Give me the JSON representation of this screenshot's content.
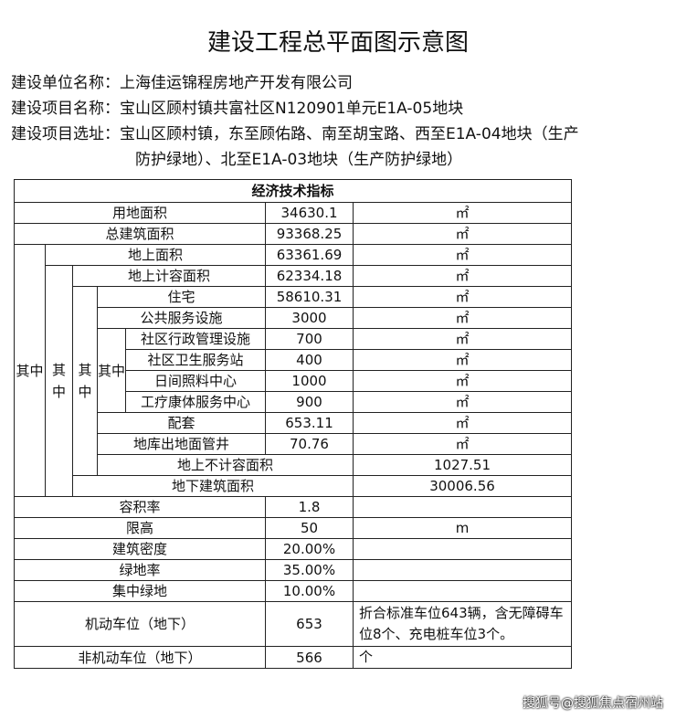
{
  "title": "建设工程总平面图示意图",
  "info": {
    "unit": "建设单位名称：上海佳运锦程房地产开发有限公司",
    "project": "建设项目名称：宝山区顾村镇共富社区N120901单元E1A-05地块",
    "site_line1": "建设项目选址：宝山区顾村镇，东至顾佑路、南至胡宝路、西至E1A-04地块（生产",
    "site_line2": "防护绿地）、北至E1A-03地块（生产防护绿地）"
  },
  "table": {
    "header": "经济技术指标",
    "qizhong": "其中",
    "rows": [
      {
        "label": "用地面积",
        "value": "34630.1",
        "unit": "㎡",
        "lvl": 0
      },
      {
        "label": "总建筑面积",
        "value": "93368.25",
        "unit": "㎡",
        "lvl": 0
      },
      {
        "label": "地上面积",
        "value": "63361.69",
        "unit": "㎡",
        "lvl": 1
      },
      {
        "label": "地上计容面积",
        "value": "62334.18",
        "unit": "㎡",
        "lvl": 2
      },
      {
        "label": "住宅",
        "value": "58610.31",
        "unit": "㎡",
        "lvl": 3
      },
      {
        "label": "公共服务设施",
        "value": "3000",
        "unit": "㎡",
        "lvl": 3
      },
      {
        "label": "社区行政管理设施",
        "value": "700",
        "unit": "㎡",
        "lvl": 4
      },
      {
        "label": "社区卫生服务站",
        "value": "400",
        "unit": "㎡",
        "lvl": 4
      },
      {
        "label": "日间照料中心",
        "value": "1000",
        "unit": "㎡",
        "lvl": 4
      },
      {
        "label": "工疗康体服务中心",
        "value": "900",
        "unit": "㎡",
        "lvl": 4
      },
      {
        "label": "配套",
        "value": "653.11",
        "unit": "㎡",
        "lvl": 3
      },
      {
        "label": "地库出地面管井",
        "value": "70.76",
        "unit": "㎡",
        "lvl": 3
      },
      {
        "label": "地上不计容面积",
        "value": "1027.51",
        "unit": "㎡",
        "lvl": 2
      },
      {
        "label": "地下建筑面积",
        "value": "30006.56",
        "unit": "㎡",
        "lvl": 1
      },
      {
        "label": "容积率",
        "value": "1.8",
        "unit": "",
        "lvl": 0
      },
      {
        "label": "限高",
        "value": "50",
        "unit": "m",
        "lvl": 0
      },
      {
        "label": "建筑密度",
        "value": "20.00%",
        "unit": "",
        "lvl": 0
      },
      {
        "label": "绿地率",
        "value": "35.00%",
        "unit": "",
        "lvl": 0
      },
      {
        "label": "集中绿地",
        "value": "10.00%",
        "unit": "",
        "lvl": 0
      },
      {
        "label": "机动车位（地下）",
        "value": "653",
        "unit": "折合标准车位643辆，含无障碍车位8个、充电桩车位3个。",
        "lvl": 0,
        "note": true
      },
      {
        "label": "非机动车位（地下）",
        "value": "566",
        "unit": "个",
        "lvl": 0,
        "note": true
      }
    ]
  },
  "watermark": "搜狐号@搜狐焦点宿州站"
}
